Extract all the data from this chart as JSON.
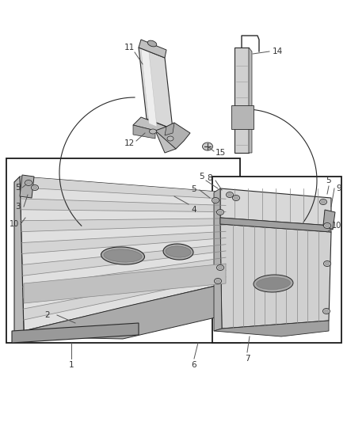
{
  "bg_color": "#ffffff",
  "line_color": "#2a2a2a",
  "fig_width": 4.38,
  "fig_height": 5.33,
  "dpi": 100,
  "label_fs": 7.5,
  "label_color": "#333333",
  "leader_color": "#555555"
}
